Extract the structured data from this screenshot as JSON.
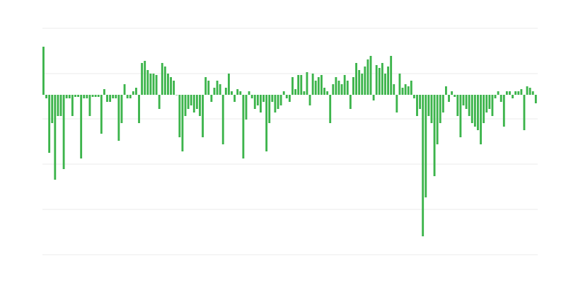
{
  "chart_data": {
    "type": "bar",
    "color": "#3cb44b",
    "values": [
      68,
      -5,
      -82,
      -40,
      -120,
      -30,
      -30,
      -105,
      -5,
      -5,
      -30,
      -3,
      -3,
      -90,
      -5,
      -5,
      -30,
      -3,
      -3,
      -3,
      -55,
      8,
      -10,
      -10,
      -5,
      -5,
      -65,
      -40,
      15,
      -5,
      -5,
      5,
      10,
      -40,
      45,
      48,
      35,
      30,
      30,
      28,
      -20,
      45,
      40,
      30,
      25,
      20,
      0,
      -60,
      -80,
      -30,
      -20,
      -15,
      -25,
      -20,
      -30,
      -60,
      25,
      20,
      -10,
      10,
      20,
      15,
      -70,
      10,
      30,
      5,
      -10,
      8,
      5,
      -90,
      -35,
      5,
      -5,
      -20,
      -15,
      -25,
      -10,
      -80,
      -40,
      -10,
      -25,
      -20,
      -15,
      5,
      -5,
      -10,
      25,
      8,
      28,
      28,
      5,
      32,
      -15,
      30,
      20,
      25,
      28,
      10,
      5,
      -40,
      15,
      25,
      20,
      15,
      28,
      20,
      -20,
      25,
      45,
      35,
      30,
      40,
      50,
      55,
      -8,
      42,
      38,
      45,
      30,
      40,
      55,
      15,
      -25,
      30,
      10,
      15,
      12,
      20,
      -5,
      -30,
      -20,
      -200,
      -145,
      -30,
      -40,
      -115,
      -70,
      -40,
      -25,
      12,
      -10,
      5,
      -3,
      -30,
      -60,
      -15,
      -20,
      -30,
      -40,
      -45,
      -50,
      -70,
      -40,
      -25,
      -20,
      -30,
      -5,
      5,
      -10,
      -45,
      5,
      5,
      -5,
      5,
      5,
      8,
      -50,
      12,
      10,
      5,
      -12
    ],
    "ylim": [
      -226,
      94
    ],
    "yticks": [
      94,
      30,
      -34,
      -98,
      -162,
      -226
    ],
    "grid": true
  }
}
